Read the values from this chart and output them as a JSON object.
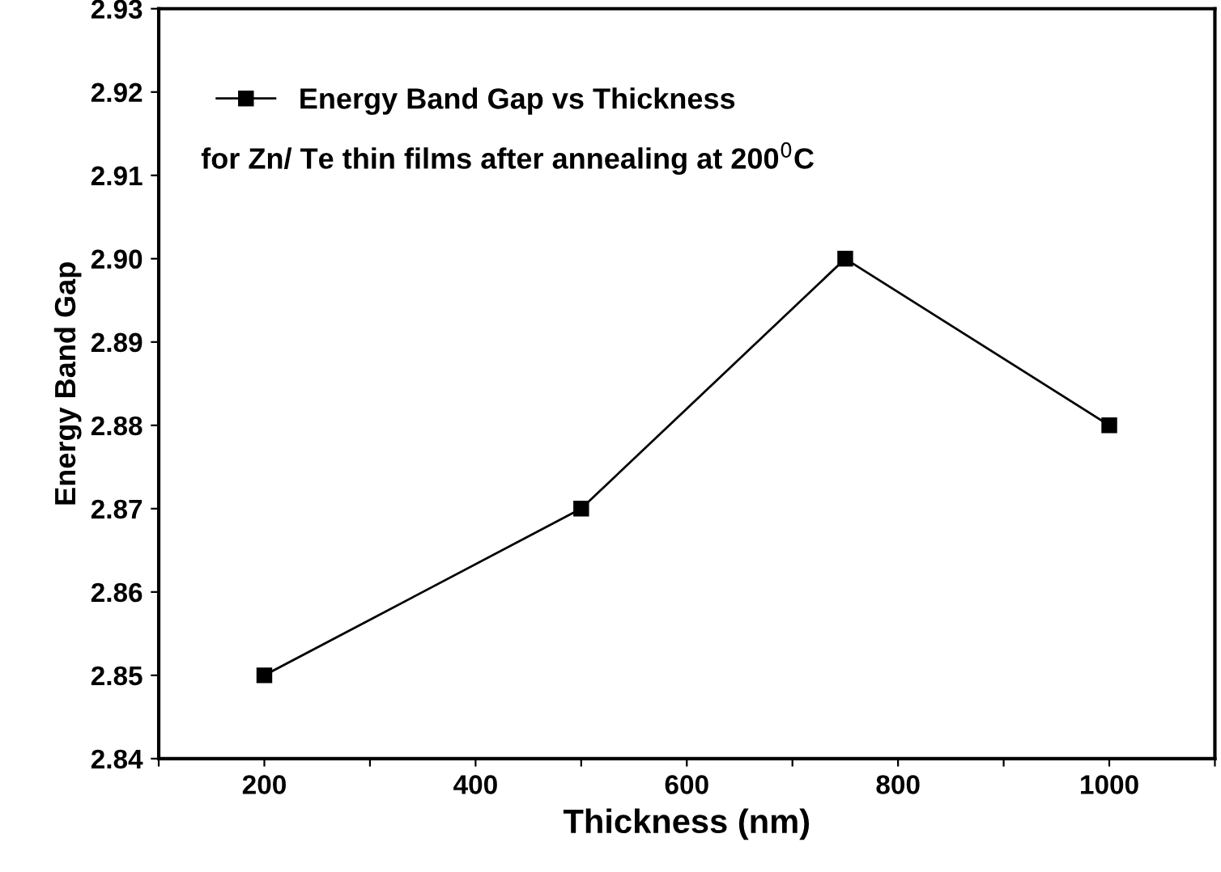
{
  "chart_data": {
    "type": "line",
    "xlabel": "Thickness (nm)",
    "ylabel": "Energy Band Gap",
    "x": [
      200,
      500,
      750,
      1000
    ],
    "series": [
      {
        "name": "Energy Band Gap vs Thickness",
        "color": "#000000",
        "values": [
          2.85,
          2.87,
          2.9,
          2.88
        ]
      }
    ],
    "annotations": [
      "for Zn/ Te thin films after annealing at 200$^{0}$C"
    ],
    "xlim": [
      100,
      1100
    ],
    "xticks": [
      {
        "value": 100,
        "label": null
      },
      200,
      {
        "value": 300,
        "label": null
      },
      400,
      {
        "value": 500,
        "label": null
      },
      600,
      {
        "value": 700,
        "label": null
      },
      800,
      {
        "value": 900,
        "label": null
      },
      1000,
      {
        "value": 1100,
        "label": null
      }
    ],
    "ylim": [
      2.84,
      2.93
    ],
    "yticks": [
      2.84,
      2.85,
      2.86,
      2.87,
      2.88,
      2.89,
      {
        "value": 2.9,
        "label": "2.90"
      },
      2.91,
      2.92,
      2.93
    ],
    "marker": "square",
    "line_style": "solid",
    "legend": "top left",
    "grid": false
  }
}
